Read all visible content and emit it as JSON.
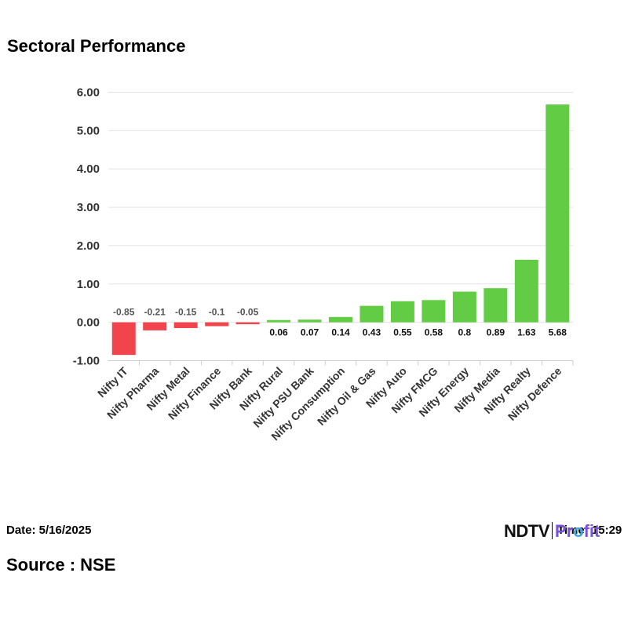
{
  "title": "Sectoral Performance",
  "footer": {
    "date": "Date: 5/16/2025",
    "time": "Time: 15:29",
    "source": "Source : NSE",
    "logo_ndtv": "NDTV",
    "logo_profit_pre": "Pr",
    "logo_profit_o": "o",
    "logo_profit_post": "fit"
  },
  "colors": {
    "positive": "#62cc45",
    "negative": "#f2444d",
    "grid": "#e3e3e3",
    "text": "#333333"
  },
  "chart_data": {
    "type": "bar",
    "categories": [
      "Nifty IT",
      "Nifty Pharma",
      "Nifty Metal",
      "Nifty Finance",
      "Nifty Bank",
      "Nifty Rural",
      "Nifty PSU Bank",
      "Nifty Consumption",
      "Nifty Oil & Gas",
      "Nifty Auto",
      "Nifty FMCG",
      "Nifty Energy",
      "Nifty Media",
      "Nifty Realty",
      "Nifty Defence"
    ],
    "values": [
      -0.85,
      -0.21,
      -0.15,
      -0.1,
      -0.05,
      0.06,
      0.07,
      0.14,
      0.43,
      0.55,
      0.58,
      0.8,
      0.89,
      1.63,
      5.68
    ],
    "data_labels": [
      "-0.85",
      "-0.21",
      "-0.15",
      "-0.1",
      "-0.05",
      "0.06",
      "0.07",
      "0.14",
      "0.43",
      "0.55",
      "0.58",
      "0.8",
      "0.89",
      "1.63",
      "5.68"
    ],
    "yticks": [
      -1,
      0,
      1,
      2,
      3,
      4,
      5,
      6
    ],
    "ytick_labels": [
      "-1.00",
      "0.00",
      "1.00",
      "2.00",
      "3.00",
      "4.00",
      "5.00",
      "6.00"
    ],
    "ylim": [
      -1,
      6
    ],
    "grid": true,
    "legend": "none"
  }
}
